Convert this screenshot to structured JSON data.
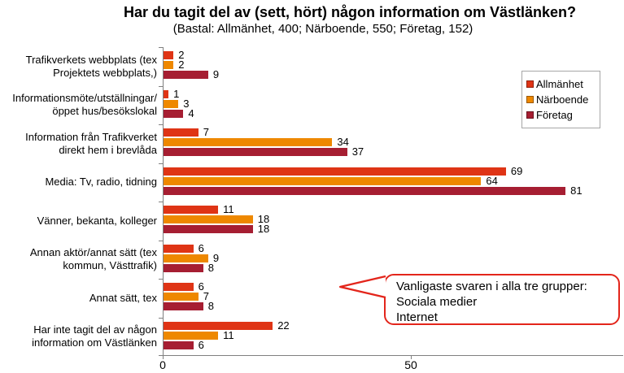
{
  "chart_data": {
    "type": "bar",
    "orientation": "horizontal",
    "title": "Har du tagit del av (sett, hört) någon information om Västlänken?",
    "subtitle": "(Bastal: Allmänhet, 400; Närboende, 550; Företag, 152)",
    "base_sizes": {
      "Allmänhet": 400,
      "Närboende": 550,
      "Företag": 152
    },
    "categories": [
      "Trafikverkets webbplats (tex Projektets webbplats,)",
      "Informationsmöte/utställningar/öppet hus/besökslokal",
      "Information från Trafikverket direkt hem i brevlåda",
      "Media: Tv, radio, tidning",
      "Vänner, bekanta, kolleger",
      "Annan aktör/annat sätt (tex kommun, Västtrafik)",
      "Annat sätt, tex",
      "Har inte tagit del av någon information om Västlänken"
    ],
    "category_lines": [
      [
        "Trafikverkets webbplats (tex",
        "Projektets webbplats,)"
      ],
      [
        "Informationsmöte/utställningar/",
        "öppet hus/besökslokal"
      ],
      [
        "Information från Trafikverket",
        "direkt hem i brevlåda"
      ],
      [
        "Media: Tv, radio, tidning"
      ],
      [
        "Vänner, bekanta, kolleger"
      ],
      [
        "Annan aktör/annat sätt (tex",
        "kommun, Västtrafik)"
      ],
      [
        "Annat sätt, tex"
      ],
      [
        "Har inte tagit del av någon",
        "information om Västlänken"
      ]
    ],
    "series": [
      {
        "name": "Allmänhet",
        "color": "#df3415",
        "values": [
          2,
          1,
          7,
          69,
          11,
          6,
          6,
          22
        ]
      },
      {
        "name": "Närboende",
        "color": "#ee8800",
        "values": [
          2,
          3,
          34,
          64,
          18,
          9,
          7,
          11
        ]
      },
      {
        "name": "Företag",
        "color": "#a61e32",
        "values": [
          9,
          4,
          37,
          81,
          18,
          8,
          8,
          6
        ]
      }
    ],
    "xlim": [
      0,
      92.5
    ],
    "x_ticks": [
      0,
      50
    ],
    "grid": false,
    "legend_position": "top-right",
    "axis_color": "#808080"
  },
  "callout": {
    "lines": [
      "Vanligaste svaren i alla tre grupper:",
      "Sociala medier",
      "Internet"
    ],
    "border_color": "#e3251b"
  }
}
